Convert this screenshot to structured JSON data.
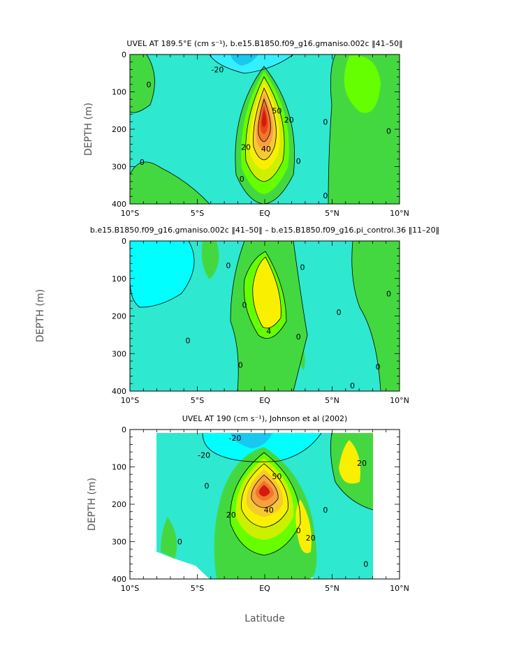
{
  "figure": {
    "xlabel": "Latitude"
  },
  "chart_data": [
    {
      "type": "heatmap",
      "title": "UVEL AT 189.5°E (cm s⁻¹), b.e15.B1850.f09_g16.gmaniso.002c ‖41–50‖",
      "xlabel": "",
      "ylabel": "DEPTH (m)",
      "xlim": [
        -10,
        10
      ],
      "ylim": [
        400,
        0
      ],
      "x_tick_labels": [
        "10°S",
        "5°S",
        "EQ",
        "5°N",
        "10°N"
      ],
      "x_ticks": [
        -10,
        -5,
        0,
        5,
        10
      ],
      "y_ticks": [
        0,
        100,
        200,
        300,
        400
      ],
      "contour_interval": 10,
      "contour_labels": [
        {
          "text": "-20",
          "x": -3.5,
          "y": 40
        },
        {
          "text": "0",
          "x": -8.6,
          "y": 80
        },
        {
          "text": "0",
          "x": 4.5,
          "y": 180
        },
        {
          "text": "0",
          "x": 9.2,
          "y": 205
        },
        {
          "text": "0",
          "x": -9.1,
          "y": 288
        },
        {
          "text": "0",
          "x": 2.5,
          "y": 285
        },
        {
          "text": "0",
          "x": 4.5,
          "y": 378
        },
        {
          "text": "0",
          "x": -1.7,
          "y": 333
        },
        {
          "text": "20",
          "x": -1.4,
          "y": 248
        },
        {
          "text": "20",
          "x": 1.8,
          "y": 175
        },
        {
          "text": "40",
          "x": 0.1,
          "y": 252
        },
        {
          "text": "50",
          "x": 0.9,
          "y": 150
        }
      ],
      "features": [
        {
          "name": "core",
          "x": 0,
          "y": 160,
          "value": 95,
          "sx": 1.3,
          "sy": 85
        },
        {
          "name": "surface-westward",
          "x": -1,
          "y": 5,
          "value": -35,
          "sx": 2.5,
          "sy": 40
        },
        {
          "name": "north-east",
          "x": 7.5,
          "y": 90,
          "value": 15,
          "sx": 1.8,
          "sy": 80
        }
      ]
    },
    {
      "type": "heatmap",
      "title": "b.e15.B1850.f09_g16.gmaniso.002c ‖41–50‖ – b.e15.B1850.f09_g16.pi_control.36 ‖11–20‖",
      "xlabel": "",
      "ylabel": "DEPTH (m)",
      "xlim": [
        -10,
        10
      ],
      "ylim": [
        400,
        0
      ],
      "x_tick_labels": [
        "10°S",
        "5°S",
        "EQ",
        "5°N",
        "10°N"
      ],
      "x_ticks": [
        -10,
        -5,
        0,
        5,
        10
      ],
      "y_ticks": [
        0,
        100,
        200,
        300,
        400
      ],
      "contour_interval": 2,
      "contour_labels": [
        {
          "text": "0",
          "x": -2.7,
          "y": 65
        },
        {
          "text": "0",
          "x": 2.8,
          "y": 70
        },
        {
          "text": "0",
          "x": -1.5,
          "y": 170
        },
        {
          "text": "0",
          "x": -5.7,
          "y": 265
        },
        {
          "text": "0",
          "x": 2.5,
          "y": 255
        },
        {
          "text": "0",
          "x": 5.5,
          "y": 190
        },
        {
          "text": "0",
          "x": 9.2,
          "y": 140
        },
        {
          "text": "0",
          "x": -1.8,
          "y": 330
        },
        {
          "text": "0",
          "x": 8.4,
          "y": 335
        },
        {
          "text": "0",
          "x": 6.5,
          "y": 385
        },
        {
          "text": "4",
          "x": 0.3,
          "y": 240
        }
      ],
      "features": [
        {
          "name": "core-difference",
          "x": 0.2,
          "y": 160,
          "value": 6,
          "sx": 1.0,
          "sy": 60
        },
        {
          "name": "north-east",
          "x": 7.5,
          "y": 100,
          "value": 1.5,
          "sx": 1.5,
          "sy": 120
        }
      ]
    },
    {
      "type": "heatmap",
      "title": "UVEL AT 190 (cm s⁻¹), Johnson et al (2002)",
      "xlabel": "Latitude",
      "ylabel": "DEPTH (m)",
      "xlim": [
        -10,
        10
      ],
      "ylim": [
        400,
        0
      ],
      "x_tick_labels": [
        "10°S",
        "5°S",
        "EQ",
        "5°N",
        "10°N"
      ],
      "x_ticks": [
        -10,
        -5,
        0,
        5,
        10
      ],
      "y_ticks": [
        0,
        100,
        200,
        300,
        400
      ],
      "data_extent_lat": [
        -8,
        8
      ],
      "contour_interval": 10,
      "contour_labels": [
        {
          "text": "-20",
          "x": -2.2,
          "y": 22
        },
        {
          "text": "-20",
          "x": -4.5,
          "y": 68
        },
        {
          "text": "0",
          "x": -4.3,
          "y": 150
        },
        {
          "text": "0",
          "x": 2.5,
          "y": 270
        },
        {
          "text": "0",
          "x": 4.5,
          "y": 215
        },
        {
          "text": "0",
          "x": -6.3,
          "y": 300
        },
        {
          "text": "0",
          "x": 7.5,
          "y": 360
        },
        {
          "text": "20",
          "x": -2.5,
          "y": 228
        },
        {
          "text": "20",
          "x": 3.4,
          "y": 290
        },
        {
          "text": "20",
          "x": 7.2,
          "y": 90
        },
        {
          "text": "40",
          "x": 0.3,
          "y": 215
        },
        {
          "text": "50",
          "x": 0.9,
          "y": 125
        }
      ],
      "features": [
        {
          "name": "core",
          "x": 0,
          "y": 145,
          "value": 95,
          "sx": 1.6,
          "sy": 75
        },
        {
          "name": "surface-westward",
          "x": -0.5,
          "y": 10,
          "value": -30,
          "sx": 3.0,
          "sy": 45
        },
        {
          "name": "north-subsurface",
          "x": 3.0,
          "y": 280,
          "value": 25,
          "sx": 0.7,
          "sy": 60
        },
        {
          "name": "north-east",
          "x": 6.8,
          "y": 80,
          "value": 25,
          "sx": 1.2,
          "sy": 55
        }
      ]
    }
  ]
}
